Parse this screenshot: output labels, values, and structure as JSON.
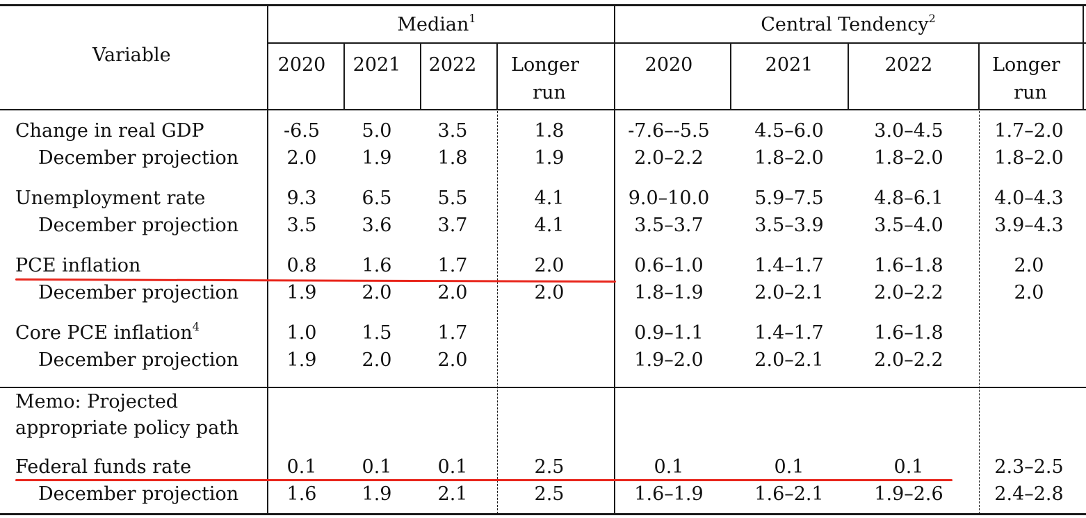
{
  "header": {
    "variable_label": "Variable",
    "median_label": "Median",
    "median_note": "1",
    "central_label": "Central Tendency",
    "central_note": "2",
    "years": [
      "2020",
      "2021",
      "2022"
    ],
    "longer_run_line1": "Longer",
    "longer_run_line2": "run"
  },
  "rows": [
    {
      "label": "Change in real GDP",
      "indent": false,
      "median": [
        "-6.5",
        "5.0",
        "3.5",
        "1.8"
      ],
      "central": [
        "-7.6–-5.5",
        "4.5–6.0",
        "3.0–4.5",
        "1.7–2.0"
      ]
    },
    {
      "label": "December projection",
      "indent": true,
      "median": [
        "2.0",
        "1.9",
        "1.8",
        "1.9"
      ],
      "central": [
        "2.0–2.2",
        "1.8–2.0",
        "1.8–2.0",
        "1.8–2.0"
      ]
    },
    {
      "label": "Unemployment rate",
      "indent": false,
      "median": [
        "9.3",
        "6.5",
        "5.5",
        "4.1"
      ],
      "central": [
        "9.0–10.0",
        "5.9–7.5",
        "4.8–6.1",
        "4.0–4.3"
      ]
    },
    {
      "label": "December projection",
      "indent": true,
      "median": [
        "3.5",
        "3.6",
        "3.7",
        "4.1"
      ],
      "central": [
        "3.5–3.7",
        "3.5–3.9",
        "3.5–4.0",
        "3.9–4.3"
      ]
    },
    {
      "label": "PCE inflation",
      "indent": false,
      "median": [
        "0.8",
        "1.6",
        "1.7",
        "2.0"
      ],
      "central": [
        "0.6–1.0",
        "1.4–1.7",
        "1.6–1.8",
        "2.0"
      ]
    },
    {
      "label": "December projection",
      "indent": true,
      "median": [
        "1.9",
        "2.0",
        "2.0",
        "2.0"
      ],
      "central": [
        "1.8–1.9",
        "2.0–2.1",
        "2.0–2.2",
        "2.0"
      ]
    },
    {
      "label": "Core PCE inflation",
      "note": "4",
      "indent": false,
      "median": [
        "1.0",
        "1.5",
        "1.7",
        ""
      ],
      "central": [
        "0.9–1.1",
        "1.4–1.7",
        "1.6–1.8",
        ""
      ]
    },
    {
      "label": "December projection",
      "indent": true,
      "median": [
        "1.9",
        "2.0",
        "2.0",
        ""
      ],
      "central": [
        "1.9–2.0",
        "2.0–2.1",
        "2.0–2.2",
        ""
      ]
    },
    {
      "label": "Federal funds rate",
      "indent": false,
      "median": [
        "0.1",
        "0.1",
        "0.1",
        "2.5"
      ],
      "central": [
        "0.1",
        "0.1",
        "0.1",
        "2.3–2.5"
      ]
    },
    {
      "label": "December projection",
      "indent": true,
      "median": [
        "1.6",
        "1.9",
        "2.1",
        "2.5"
      ],
      "central": [
        "1.6–1.9",
        "1.6–2.1",
        "1.9–2.6",
        "2.4–2.8"
      ]
    }
  ],
  "memo": {
    "line1": "Memo: Projected",
    "line2": "appropriate policy path"
  },
  "annotation_color": "#e8261c"
}
